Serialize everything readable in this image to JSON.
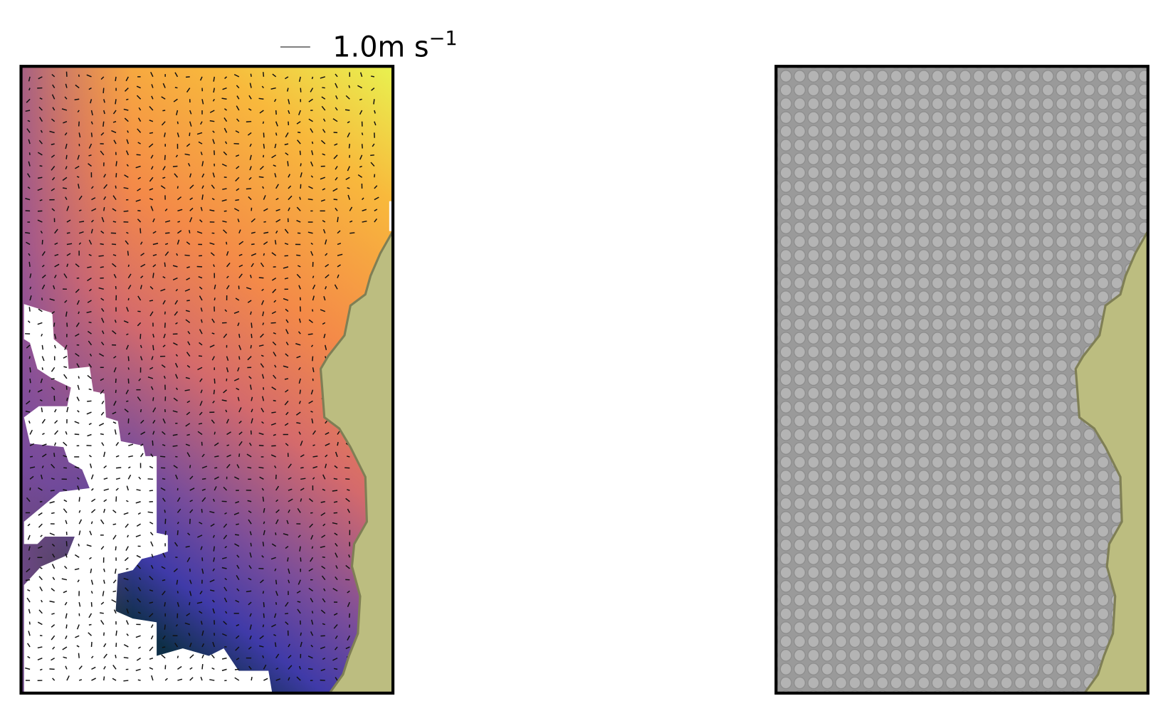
{
  "quiver_key": {
    "text": "1.0m s",
    "exponent": "−1"
  }
}
